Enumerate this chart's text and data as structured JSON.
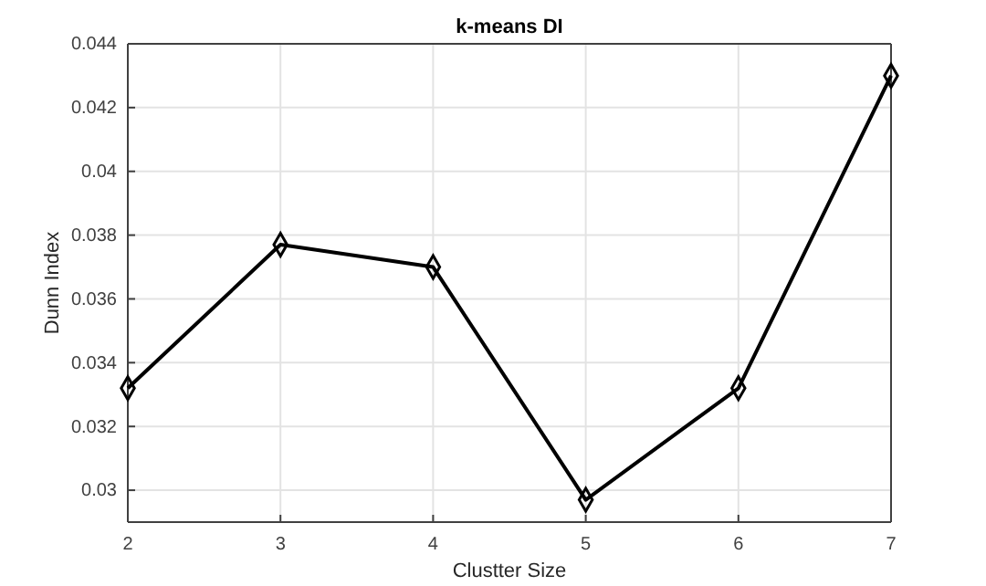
{
  "chart_data": {
    "type": "line",
    "title": "k-means DI",
    "xlabel": "Clustter Size",
    "ylabel": "Dunn Index",
    "x": [
      2,
      3,
      4,
      5,
      6,
      7
    ],
    "series": [
      {
        "color": "#000000",
        "values": [
          0.0332,
          0.0377,
          0.037,
          0.0297,
          0.0332,
          0.043
        ]
      }
    ],
    "xlim": [
      2,
      7
    ],
    "xticks": [
      2,
      3,
      4,
      5,
      6,
      7
    ],
    "ylim": [
      0.029,
      0.044
    ],
    "yticks": [
      0.03,
      0.032,
      0.034,
      0.036,
      0.038,
      0.04,
      0.042,
      0.044
    ],
    "grid": true,
    "marker": "diamond",
    "line_style": "solid"
  }
}
